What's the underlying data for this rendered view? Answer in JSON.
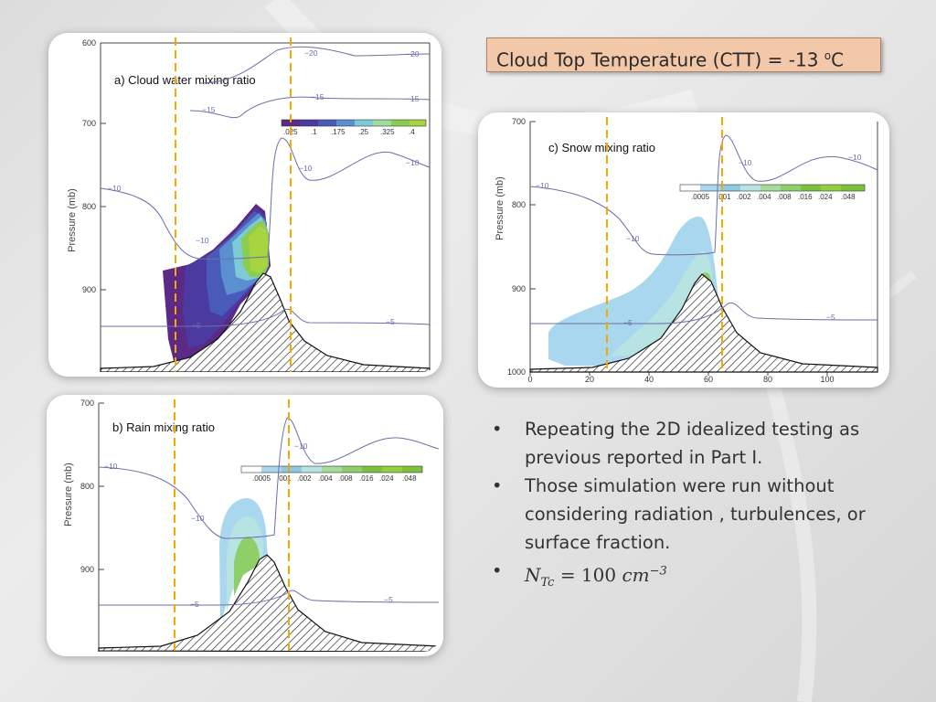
{
  "ctt": {
    "text": "Cloud Top Temperature (CTT) = -13 ",
    "sup": "o",
    "unit": "C"
  },
  "bullets": [
    "Repeating the 2D idealized testing as previous reported in Part I.",
    "Those simulation were run without considering radiation , turbulences, or surface fraction."
  ],
  "formula": {
    "n": "N",
    "sub": "Tc",
    "eq": "= 100 ",
    "unit": "cm",
    "exp": "−3"
  },
  "panels": {
    "a": {
      "title": "a)  Cloud water mixing ratio",
      "ylabel": "Pressure  (mb)",
      "yticks": [
        "600",
        "700",
        "800",
        "900"
      ],
      "colorbar": [
        ".025",
        ".1",
        ".175",
        ".25",
        ".325",
        ".4"
      ],
      "contours": [
        "−20",
        "−20",
        "−15",
        "−15",
        "−15",
        "−10",
        "−10",
        "−10",
        "−10",
        "−5",
        "−5"
      ]
    },
    "b": {
      "title": "b)  Rain mixing ratio",
      "ylabel": "Pressure  (mb)",
      "yticks": [
        "700",
        "800",
        "900"
      ],
      "colorbar": [
        ".0005",
        ".001",
        ".002",
        ".004",
        ".008",
        ".016",
        ".024",
        ".048"
      ],
      "contours": [
        "−10",
        "−10",
        "−10",
        "−5",
        "−5"
      ]
    },
    "c": {
      "title": "c)  Snow mixing ratio",
      "ylabel": "Pressure  (mb)",
      "yticks": [
        "700",
        "800",
        "900",
        "1000"
      ],
      "xticks": [
        "0",
        "20",
        "40",
        "60",
        "80",
        "100"
      ],
      "colorbar": [
        ".0005",
        ".001",
        ".002",
        ".004",
        ".008",
        ".016",
        ".024",
        ".048"
      ],
      "contours": [
        "−10",
        "−10",
        "−10",
        "−10",
        "−5",
        "−5"
      ]
    }
  },
  "colors": {
    "dashed": "#f5a800",
    "contour": "#6b6fa8",
    "ctt_bg": "#f3c8a9"
  }
}
